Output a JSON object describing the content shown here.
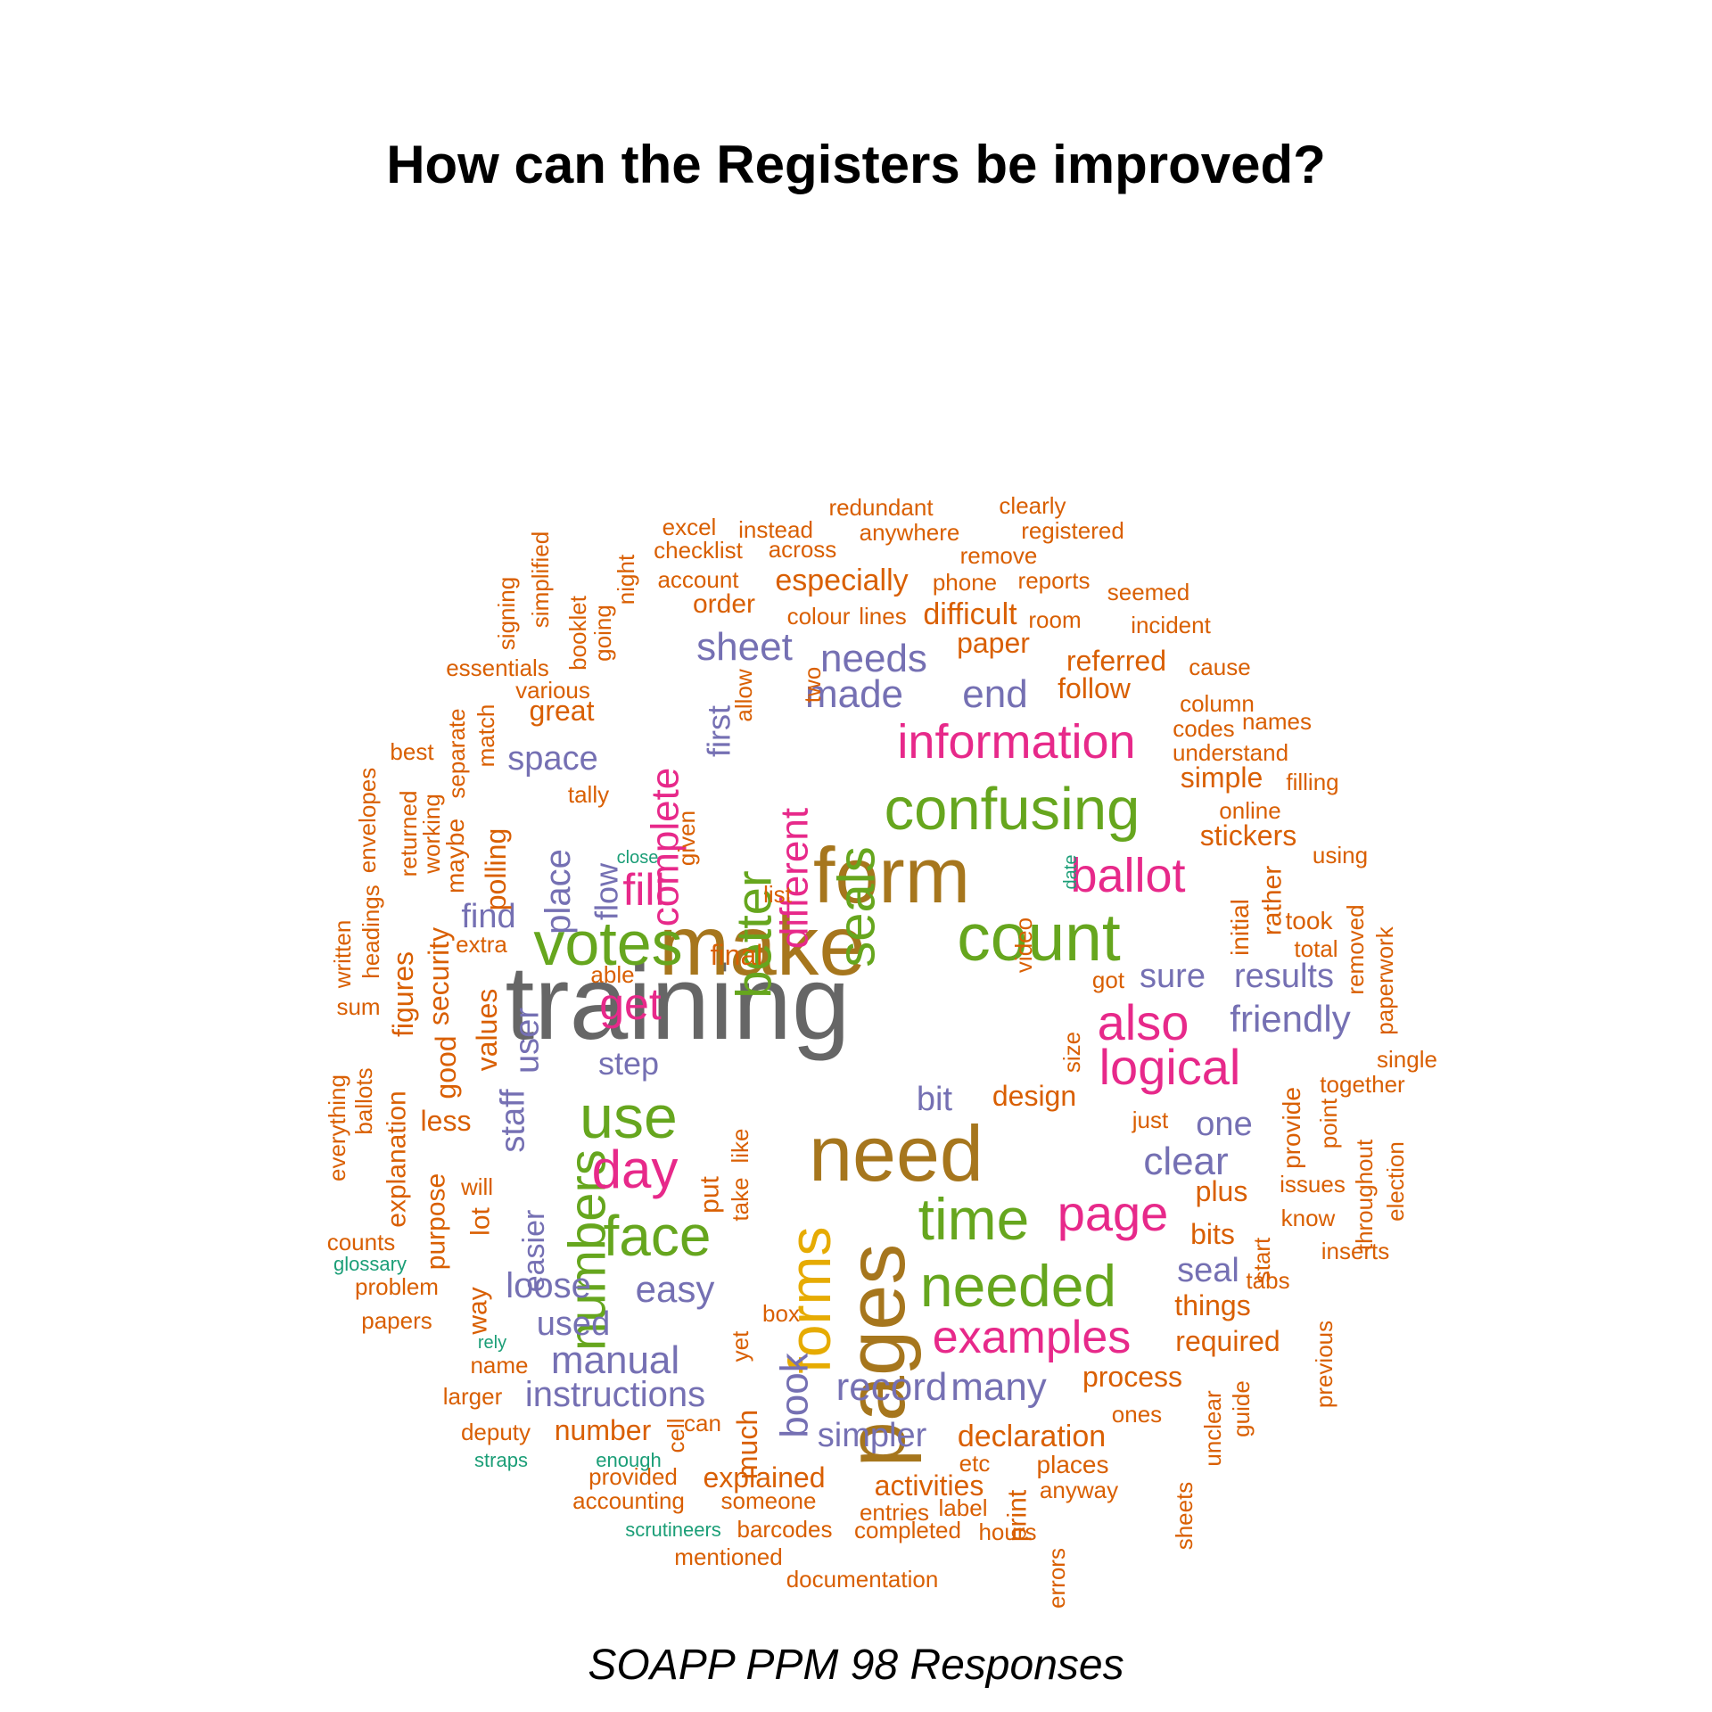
{
  "title": "How can the Registers be improved?",
  "subtitle": "SOAPP PPM 98 Responses",
  "colors": {
    "grey": "#666666",
    "brown": "#A6761D",
    "green": "#66A61E",
    "magenta": "#E7298A",
    "gold": "#E6AB02",
    "purple": "#7570B3",
    "orange": "#D95F02",
    "teal": "#1B9E77"
  },
  "words": [
    {
      "text": "training",
      "color": "grey"
    },
    {
      "text": "make",
      "color": "brown"
    },
    {
      "text": "form",
      "color": "brown"
    },
    {
      "text": "need",
      "color": "brown"
    },
    {
      "text": "pages",
      "color": "brown"
    },
    {
      "text": "count",
      "color": "green"
    },
    {
      "text": "votes",
      "color": "green"
    },
    {
      "text": "confusing",
      "color": "green"
    },
    {
      "text": "seals",
      "color": "green"
    },
    {
      "text": "better",
      "color": "green"
    },
    {
      "text": "use",
      "color": "green"
    },
    {
      "text": "numbers",
      "color": "green"
    },
    {
      "text": "time",
      "color": "green"
    },
    {
      "text": "needed",
      "color": "green"
    },
    {
      "text": "face",
      "color": "green"
    },
    {
      "text": "forms",
      "color": "gold"
    },
    {
      "text": "information",
      "color": "magenta"
    },
    {
      "text": "complete",
      "color": "magenta"
    },
    {
      "text": "different",
      "color": "magenta"
    },
    {
      "text": "fill",
      "color": "magenta"
    },
    {
      "text": "ballot",
      "color": "magenta"
    },
    {
      "text": "get",
      "color": "magenta"
    },
    {
      "text": "also",
      "color": "magenta"
    },
    {
      "text": "logical",
      "color": "magenta"
    },
    {
      "text": "day",
      "color": "magenta"
    },
    {
      "text": "page",
      "color": "magenta"
    },
    {
      "text": "examples",
      "color": "magenta"
    },
    {
      "text": "sheet",
      "color": "purple"
    },
    {
      "text": "needs",
      "color": "purple"
    },
    {
      "text": "made",
      "color": "purple"
    },
    {
      "text": "end",
      "color": "purple"
    },
    {
      "text": "space",
      "color": "purple"
    },
    {
      "text": "first",
      "color": "purple"
    },
    {
      "text": "place",
      "color": "purple"
    },
    {
      "text": "flow",
      "color": "purple"
    },
    {
      "text": "find",
      "color": "purple"
    },
    {
      "text": "user",
      "color": "purple"
    },
    {
      "text": "staff",
      "color": "purple"
    },
    {
      "text": "step",
      "color": "purple"
    },
    {
      "text": "sure",
      "color": "purple"
    },
    {
      "text": "results",
      "color": "purple"
    },
    {
      "text": "friendly",
      "color": "purple"
    },
    {
      "text": "bit",
      "color": "purple"
    },
    {
      "text": "one",
      "color": "purple"
    },
    {
      "text": "clear",
      "color": "purple"
    },
    {
      "text": "easier",
      "color": "purple"
    },
    {
      "text": "loose",
      "color": "purple"
    },
    {
      "text": "easy",
      "color": "purple"
    },
    {
      "text": "used",
      "color": "purple"
    },
    {
      "text": "manual",
      "color": "purple"
    },
    {
      "text": "instructions",
      "color": "purple"
    },
    {
      "text": "book",
      "color": "purple"
    },
    {
      "text": "record",
      "color": "purple"
    },
    {
      "text": "many",
      "color": "purple"
    },
    {
      "text": "seal",
      "color": "purple"
    },
    {
      "text": "simpler",
      "color": "purple"
    },
    {
      "text": "redundant",
      "color": "orange"
    },
    {
      "text": "clearly",
      "color": "orange"
    },
    {
      "text": "excel",
      "color": "orange"
    },
    {
      "text": "instead",
      "color": "orange"
    },
    {
      "text": "anywhere",
      "color": "orange"
    },
    {
      "text": "registered",
      "color": "orange"
    },
    {
      "text": "checklist",
      "color": "orange"
    },
    {
      "text": "across",
      "color": "orange"
    },
    {
      "text": "remove",
      "color": "orange"
    },
    {
      "text": "simplified",
      "color": "orange"
    },
    {
      "text": "night",
      "color": "orange"
    },
    {
      "text": "account",
      "color": "orange"
    },
    {
      "text": "especially",
      "color": "orange"
    },
    {
      "text": "phone",
      "color": "orange"
    },
    {
      "text": "reports",
      "color": "orange"
    },
    {
      "text": "seemed",
      "color": "orange"
    },
    {
      "text": "signing",
      "color": "orange"
    },
    {
      "text": "booklet",
      "color": "orange"
    },
    {
      "text": "going",
      "color": "orange"
    },
    {
      "text": "order",
      "color": "orange"
    },
    {
      "text": "colour",
      "color": "orange"
    },
    {
      "text": "lines",
      "color": "orange"
    },
    {
      "text": "difficult",
      "color": "orange"
    },
    {
      "text": "room",
      "color": "orange"
    },
    {
      "text": "incident",
      "color": "orange"
    },
    {
      "text": "paper",
      "color": "orange"
    },
    {
      "text": "essentials",
      "color": "orange"
    },
    {
      "text": "referred",
      "color": "orange"
    },
    {
      "text": "cause",
      "color": "orange"
    },
    {
      "text": "various",
      "color": "orange"
    },
    {
      "text": "allow",
      "color": "orange"
    },
    {
      "text": "two",
      "color": "orange"
    },
    {
      "text": "follow",
      "color": "orange"
    },
    {
      "text": "column",
      "color": "orange"
    },
    {
      "text": "separate",
      "color": "orange"
    },
    {
      "text": "match",
      "color": "orange"
    },
    {
      "text": "great",
      "color": "orange"
    },
    {
      "text": "codes",
      "color": "orange"
    },
    {
      "text": "names",
      "color": "orange"
    },
    {
      "text": "best",
      "color": "orange"
    },
    {
      "text": "understand",
      "color": "orange"
    },
    {
      "text": "envelopes",
      "color": "orange"
    },
    {
      "text": "simple",
      "color": "orange"
    },
    {
      "text": "filling",
      "color": "orange"
    },
    {
      "text": "tally",
      "color": "orange"
    },
    {
      "text": "returned",
      "color": "orange"
    },
    {
      "text": "working",
      "color": "orange"
    },
    {
      "text": "maybe",
      "color": "orange"
    },
    {
      "text": "polling",
      "color": "orange"
    },
    {
      "text": "online",
      "color": "orange"
    },
    {
      "text": "given",
      "color": "orange"
    },
    {
      "text": "close",
      "color": "teal"
    },
    {
      "text": "stickers",
      "color": "orange"
    },
    {
      "text": "using",
      "color": "orange"
    },
    {
      "text": "date",
      "color": "teal"
    },
    {
      "text": "list",
      "color": "orange"
    },
    {
      "text": "headings",
      "color": "orange"
    },
    {
      "text": "written",
      "color": "orange"
    },
    {
      "text": "security",
      "color": "orange"
    },
    {
      "text": "initial",
      "color": "orange"
    },
    {
      "text": "rather",
      "color": "orange"
    },
    {
      "text": "took",
      "color": "orange"
    },
    {
      "text": "removed",
      "color": "orange"
    },
    {
      "text": "paperwork",
      "color": "orange"
    },
    {
      "text": "extra",
      "color": "orange"
    },
    {
      "text": "video",
      "color": "orange"
    },
    {
      "text": "final",
      "color": "orange"
    },
    {
      "text": "total",
      "color": "orange"
    },
    {
      "text": "figures",
      "color": "orange"
    },
    {
      "text": "able",
      "color": "orange"
    },
    {
      "text": "got",
      "color": "orange"
    },
    {
      "text": "sum",
      "color": "orange"
    },
    {
      "text": "values",
      "color": "orange"
    },
    {
      "text": "good",
      "color": "orange"
    },
    {
      "text": "size",
      "color": "orange"
    },
    {
      "text": "single",
      "color": "orange"
    },
    {
      "text": "everything",
      "color": "orange"
    },
    {
      "text": "ballots",
      "color": "orange"
    },
    {
      "text": "explanation",
      "color": "orange"
    },
    {
      "text": "together",
      "color": "orange"
    },
    {
      "text": "design",
      "color": "orange"
    },
    {
      "text": "provide",
      "color": "orange"
    },
    {
      "text": "less",
      "color": "orange"
    },
    {
      "text": "like",
      "color": "orange"
    },
    {
      "text": "just",
      "color": "orange"
    },
    {
      "text": "point",
      "color": "orange"
    },
    {
      "text": "throughout",
      "color": "orange"
    },
    {
      "text": "election",
      "color": "orange"
    },
    {
      "text": "purpose",
      "color": "orange"
    },
    {
      "text": "take",
      "color": "orange"
    },
    {
      "text": "put",
      "color": "orange"
    },
    {
      "text": "will",
      "color": "orange"
    },
    {
      "text": "plus",
      "color": "orange"
    },
    {
      "text": "issues",
      "color": "orange"
    },
    {
      "text": "lot",
      "color": "orange"
    },
    {
      "text": "bits",
      "color": "orange"
    },
    {
      "text": "start",
      "color": "orange"
    },
    {
      "text": "know",
      "color": "orange"
    },
    {
      "text": "counts",
      "color": "orange"
    },
    {
      "text": "inserts",
      "color": "orange"
    },
    {
      "text": "glossary",
      "color": "teal"
    },
    {
      "text": "problem",
      "color": "orange"
    },
    {
      "text": "way",
      "color": "orange"
    },
    {
      "text": "tabs",
      "color": "orange"
    },
    {
      "text": "things",
      "color": "orange"
    },
    {
      "text": "box",
      "color": "orange"
    },
    {
      "text": "previous",
      "color": "orange"
    },
    {
      "text": "papers",
      "color": "orange"
    },
    {
      "text": "rely",
      "color": "teal"
    },
    {
      "text": "yet",
      "color": "orange"
    },
    {
      "text": "required",
      "color": "orange"
    },
    {
      "text": "name",
      "color": "orange"
    },
    {
      "text": "unclear",
      "color": "orange"
    },
    {
      "text": "guide",
      "color": "orange"
    },
    {
      "text": "process",
      "color": "orange"
    },
    {
      "text": "larger",
      "color": "orange"
    },
    {
      "text": "much",
      "color": "orange"
    },
    {
      "text": "ones",
      "color": "orange"
    },
    {
      "text": "deputy",
      "color": "orange"
    },
    {
      "text": "number",
      "color": "orange"
    },
    {
      "text": "cell",
      "color": "orange"
    },
    {
      "text": "can",
      "color": "orange"
    },
    {
      "text": "declaration",
      "color": "orange"
    },
    {
      "text": "straps",
      "color": "teal"
    },
    {
      "text": "enough",
      "color": "teal"
    },
    {
      "text": "sheets",
      "color": "orange"
    },
    {
      "text": "etc",
      "color": "orange"
    },
    {
      "text": "print",
      "color": "orange"
    },
    {
      "text": "places",
      "color": "orange"
    },
    {
      "text": "provided",
      "color": "orange"
    },
    {
      "text": "explained",
      "color": "orange"
    },
    {
      "text": "activities",
      "color": "orange"
    },
    {
      "text": "anyway",
      "color": "orange"
    },
    {
      "text": "accounting",
      "color": "orange"
    },
    {
      "text": "someone",
      "color": "orange"
    },
    {
      "text": "entries",
      "color": "orange"
    },
    {
      "text": "label",
      "color": "orange"
    },
    {
      "text": "scrutineers",
      "color": "teal"
    },
    {
      "text": "barcodes",
      "color": "orange"
    },
    {
      "text": "completed",
      "color": "orange"
    },
    {
      "text": "hours",
      "color": "orange"
    },
    {
      "text": "errors",
      "color": "orange"
    },
    {
      "text": "mentioned",
      "color": "orange"
    },
    {
      "text": "documentation",
      "color": "orange"
    }
  ]
}
